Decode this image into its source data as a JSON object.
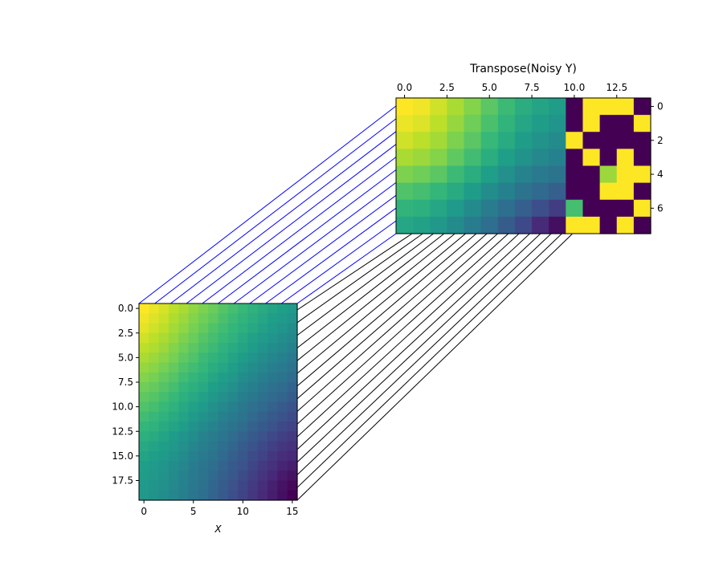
{
  "chart_data": [
    {
      "type": "heatmap",
      "title": "",
      "xlabel": "X",
      "ylabel": "",
      "colormap": "viridis",
      "rows": 20,
      "cols": 16,
      "xlim": [
        -0.5,
        15.5
      ],
      "ylim": [
        19.5,
        -0.5
      ],
      "xticks": [
        0,
        5,
        10,
        15
      ],
      "xtick_labels": [
        "0",
        "5",
        "10",
        "15"
      ],
      "yticks": [
        0,
        2.5,
        5,
        7.5,
        10,
        12.5,
        15,
        17.5
      ],
      "ytick_labels": [
        "0.0",
        "2.5",
        "5.0",
        "7.5",
        "10.0",
        "12.5",
        "15.0",
        "17.5"
      ],
      "values": [
        [
          1.0,
          0.97,
          0.94,
          0.9,
          0.87,
          0.83,
          0.8,
          0.77,
          0.73,
          0.7,
          0.67,
          0.64,
          0.61,
          0.58,
          0.56,
          0.54
        ],
        [
          0.98,
          0.95,
          0.92,
          0.88,
          0.85,
          0.81,
          0.78,
          0.75,
          0.71,
          0.68,
          0.65,
          0.62,
          0.59,
          0.56,
          0.54,
          0.52
        ],
        [
          0.96,
          0.93,
          0.9,
          0.86,
          0.83,
          0.79,
          0.76,
          0.72,
          0.69,
          0.66,
          0.63,
          0.6,
          0.57,
          0.54,
          0.52,
          0.49
        ],
        [
          0.93,
          0.9,
          0.87,
          0.84,
          0.8,
          0.77,
          0.73,
          0.7,
          0.67,
          0.64,
          0.6,
          0.57,
          0.54,
          0.52,
          0.49,
          0.47
        ],
        [
          0.9,
          0.88,
          0.85,
          0.81,
          0.78,
          0.74,
          0.71,
          0.68,
          0.64,
          0.61,
          0.58,
          0.55,
          0.52,
          0.49,
          0.47,
          0.44
        ],
        [
          0.87,
          0.85,
          0.82,
          0.79,
          0.75,
          0.72,
          0.68,
          0.65,
          0.62,
          0.58,
          0.55,
          0.52,
          0.49,
          0.46,
          0.44,
          0.41
        ],
        [
          0.84,
          0.82,
          0.79,
          0.76,
          0.72,
          0.69,
          0.66,
          0.62,
          0.59,
          0.56,
          0.52,
          0.49,
          0.46,
          0.43,
          0.41,
          0.38
        ],
        [
          0.81,
          0.79,
          0.76,
          0.73,
          0.69,
          0.66,
          0.63,
          0.59,
          0.56,
          0.53,
          0.49,
          0.46,
          0.43,
          0.4,
          0.38,
          0.35
        ],
        [
          0.78,
          0.76,
          0.73,
          0.7,
          0.66,
          0.63,
          0.6,
          0.56,
          0.53,
          0.5,
          0.46,
          0.43,
          0.4,
          0.37,
          0.35,
          0.32
        ],
        [
          0.75,
          0.73,
          0.7,
          0.67,
          0.63,
          0.6,
          0.57,
          0.53,
          0.5,
          0.47,
          0.43,
          0.4,
          0.37,
          0.34,
          0.32,
          0.29
        ],
        [
          0.72,
          0.7,
          0.67,
          0.64,
          0.6,
          0.57,
          0.54,
          0.5,
          0.47,
          0.44,
          0.4,
          0.37,
          0.34,
          0.31,
          0.28,
          0.26
        ],
        [
          0.69,
          0.67,
          0.64,
          0.61,
          0.58,
          0.54,
          0.51,
          0.48,
          0.44,
          0.41,
          0.38,
          0.34,
          0.31,
          0.28,
          0.25,
          0.23
        ],
        [
          0.66,
          0.64,
          0.61,
          0.58,
          0.55,
          0.51,
          0.48,
          0.45,
          0.41,
          0.38,
          0.35,
          0.31,
          0.28,
          0.25,
          0.22,
          0.2
        ],
        [
          0.63,
          0.61,
          0.58,
          0.55,
          0.52,
          0.49,
          0.45,
          0.42,
          0.39,
          0.35,
          0.32,
          0.28,
          0.25,
          0.22,
          0.19,
          0.17
        ],
        [
          0.6,
          0.58,
          0.56,
          0.53,
          0.5,
          0.46,
          0.43,
          0.4,
          0.36,
          0.33,
          0.29,
          0.26,
          0.22,
          0.19,
          0.16,
          0.14
        ],
        [
          0.58,
          0.56,
          0.54,
          0.51,
          0.48,
          0.44,
          0.41,
          0.38,
          0.34,
          0.3,
          0.27,
          0.23,
          0.2,
          0.16,
          0.13,
          0.11
        ],
        [
          0.56,
          0.54,
          0.52,
          0.49,
          0.46,
          0.42,
          0.39,
          0.36,
          0.32,
          0.28,
          0.25,
          0.21,
          0.17,
          0.14,
          0.1,
          0.08
        ],
        [
          0.55,
          0.53,
          0.51,
          0.48,
          0.45,
          0.41,
          0.38,
          0.34,
          0.3,
          0.27,
          0.23,
          0.19,
          0.15,
          0.11,
          0.07,
          0.05
        ],
        [
          0.54,
          0.52,
          0.5,
          0.47,
          0.44,
          0.4,
          0.37,
          0.33,
          0.29,
          0.25,
          0.21,
          0.17,
          0.13,
          0.09,
          0.05,
          0.02
        ],
        [
          0.53,
          0.51,
          0.49,
          0.46,
          0.43,
          0.39,
          0.36,
          0.32,
          0.28,
          0.24,
          0.2,
          0.16,
          0.12,
          0.08,
          0.04,
          0.0
        ]
      ]
    },
    {
      "type": "heatmap",
      "title": "Transpose(Noisy Y)",
      "xlabel": "",
      "ylabel": "",
      "colormap": "viridis",
      "rows": 8,
      "cols": 15,
      "xlim": [
        -0.5,
        14.5
      ],
      "ylim": [
        7.5,
        -0.5
      ],
      "xticks": [
        0,
        2.5,
        5,
        7.5,
        10,
        12.5
      ],
      "xtick_labels": [
        "0.0",
        "2.5",
        "5.0",
        "7.5",
        "10.0",
        "12.5"
      ],
      "yticks": [
        0,
        2,
        4,
        6
      ],
      "ytick_labels": [
        "0",
        "2",
        "4",
        "6"
      ],
      "values": [
        [
          1.0,
          0.98,
          0.93,
          0.87,
          0.81,
          0.74,
          0.68,
          0.62,
          0.58,
          0.55,
          0.0,
          1.0,
          1.0,
          1.0,
          0.0
        ],
        [
          0.97,
          0.95,
          0.9,
          0.84,
          0.78,
          0.71,
          0.65,
          0.59,
          0.55,
          0.52,
          0.0,
          1.0,
          0.0,
          0.0,
          1.0
        ],
        [
          0.93,
          0.9,
          0.86,
          0.8,
          0.74,
          0.67,
          0.61,
          0.55,
          0.51,
          0.48,
          1.0,
          0.0,
          0.0,
          0.0,
          0.0
        ],
        [
          0.87,
          0.85,
          0.81,
          0.75,
          0.69,
          0.62,
          0.56,
          0.51,
          0.47,
          0.44,
          0.0,
          1.0,
          0.0,
          1.0,
          0.0
        ],
        [
          0.8,
          0.78,
          0.74,
          0.68,
          0.62,
          0.56,
          0.5,
          0.45,
          0.41,
          0.38,
          0.0,
          0.0,
          0.85,
          1.0,
          1.0
        ],
        [
          0.72,
          0.7,
          0.66,
          0.61,
          0.55,
          0.49,
          0.44,
          0.38,
          0.34,
          0.3,
          0.0,
          0.0,
          1.0,
          1.0,
          0.0
        ],
        [
          0.65,
          0.63,
          0.59,
          0.54,
          0.48,
          0.42,
          0.36,
          0.3,
          0.24,
          0.18,
          0.7,
          0.0,
          0.0,
          0.0,
          1.0
        ],
        [
          0.59,
          0.57,
          0.53,
          0.48,
          0.42,
          0.36,
          0.29,
          0.22,
          0.12,
          0.04,
          1.0,
          1.0,
          0.0,
          1.0,
          0.0
        ]
      ]
    }
  ],
  "connector_colors": {
    "upper": "#0000ff",
    "lower": "#000000"
  }
}
